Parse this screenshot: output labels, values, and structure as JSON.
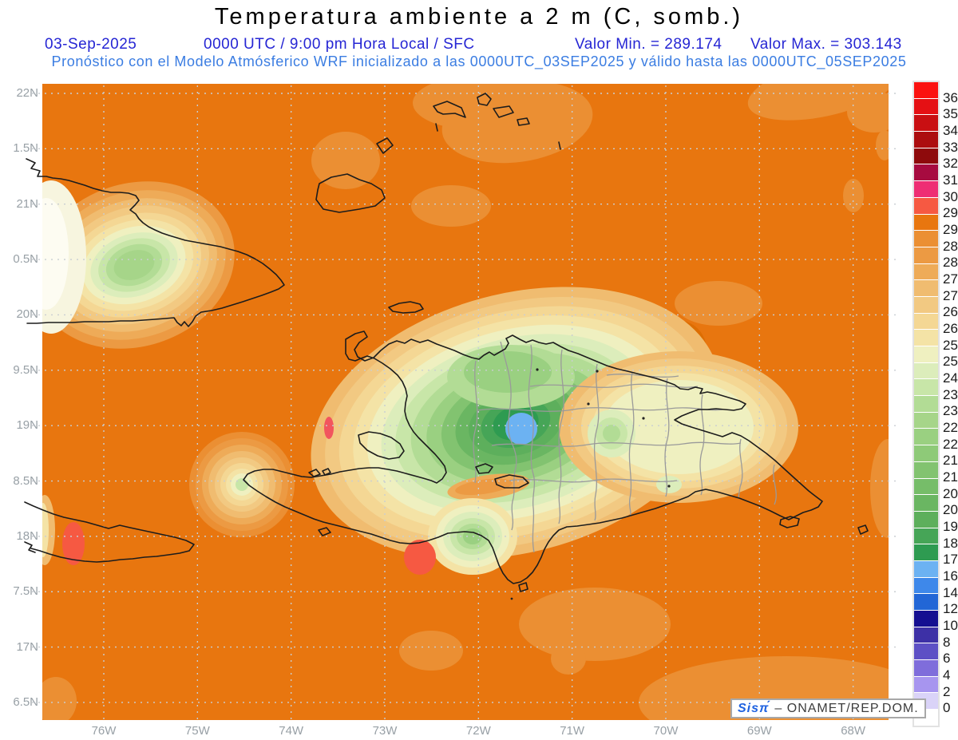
{
  "title": "Temperatura ambiente a 2 m (C, somb.)",
  "header": {
    "date": "03-Sep-2025",
    "time": "0000 UTC / 9:00 pm Hora Local / SFC",
    "valor_min": "Valor Min. = 289.174",
    "valor_max": "Valor Max. = 303.143",
    "forecast": "Pronóstico con el Modelo Atmósferico WRF inicializado a las 0000UTC_03SEP2025 y válido hasta las  0000UTC_05SEP2025"
  },
  "axes": {
    "lat_labels": [
      "22N",
      "1.5N",
      "21N",
      "0.5N",
      "20N",
      "9.5N",
      "19N",
      "8.5N",
      "18N",
      "7.5N",
      "17N",
      "6.5N"
    ],
    "lon_labels": [
      "76W",
      "75W",
      "74W",
      "73W",
      "72W",
      "71W",
      "70W",
      "69W",
      "68W"
    ]
  },
  "legend": {
    "labels": [
      "36",
      "35",
      "34",
      "33",
      "32",
      "31.5",
      "30.7",
      "29.7",
      "29",
      "28.5",
      "28",
      "27.5",
      "27",
      "26.5",
      "26",
      "25.5",
      "25",
      "24",
      "23.5",
      "23",
      "22.5",
      "22",
      "21.5",
      "21",
      "20.5",
      "20",
      "19",
      "18",
      "17",
      "16",
      "14",
      "12",
      "10",
      "8",
      "6",
      "4",
      "2",
      "0"
    ],
    "colors": [
      "#fb1210",
      "#e51014",
      "#c90f12",
      "#ac0d0f",
      "#8e0a0c",
      "#a70b40",
      "#ee2e74",
      "#f65942",
      "#e8760f",
      "#eb8f33",
      "#ec9a43",
      "#eeab58",
      "#f0bc70",
      "#f2c982",
      "#f4d794",
      "#f4e3a6",
      "#eff0c0",
      "#dcedbb",
      "#c8e6a8",
      "#b2dc95",
      "#a6d589",
      "#9ad081",
      "#8eca78",
      "#82c370",
      "#76bd69",
      "#6ab662",
      "#5daf5c",
      "#46a557",
      "#2e9b51",
      "#6cb2f2",
      "#3e88ea",
      "#2266d6",
      "#150f91",
      "#3d30a6",
      "#5d50c5",
      "#7f6ddb",
      "#a795ef",
      "#dad3f8",
      "#ffffff"
    ]
  },
  "colors": {
    "ocean": "#e8760f",
    "ocean_light": "#eb8f33",
    "hot_spot": "#f65942",
    "pink_spot": "#f2555e",
    "min_spot": "#6cb2f2",
    "header_blue": "#2626d4",
    "forecast_blue": "#3b7de2",
    "axis_gray": "#98a0a6",
    "gridline": "#c9ced2",
    "coastline": "#1c1c1c",
    "province_gray": "#9a9a9a"
  },
  "watermark": {
    "logo": "Sisπ́",
    "text": "– ONAMET/REP.DOM."
  }
}
